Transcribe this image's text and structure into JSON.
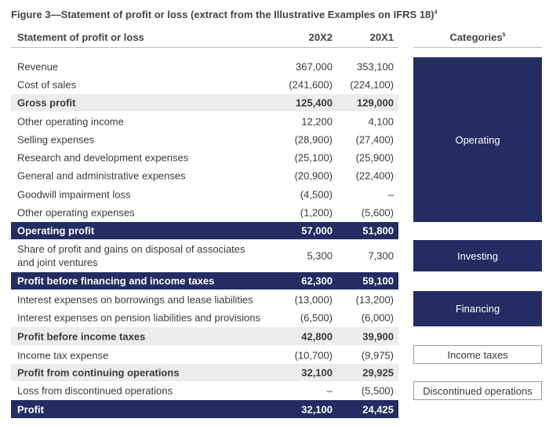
{
  "title": "Figure 3—Statement of profit or loss (extract from the Illustrative Examples on IFRS 18)",
  "title_footnote": "4",
  "header": {
    "label": "Statement of profit or loss",
    "col1": "20X2",
    "col2": "20X1",
    "categories": "Categories",
    "categories_footnote": "5"
  },
  "rows": [
    {
      "label": "Revenue",
      "v2": "367,000",
      "v1": "353,100"
    },
    {
      "label": "Cost of sales",
      "v2": "(241,600)",
      "v1": "(224,100)"
    },
    {
      "label": "Gross profit",
      "v2": "125,400",
      "v1": "129,000"
    },
    {
      "label": "Other operating income",
      "v2": "12,200",
      "v1": "4,100"
    },
    {
      "label": "Selling expenses",
      "v2": "(28,900)",
      "v1": "(27,400)"
    },
    {
      "label": "Research and development expenses",
      "v2": "(25,100)",
      "v1": "(25,900)"
    },
    {
      "label": "General and administrative expenses",
      "v2": "(20,900)",
      "v1": "(22,400)"
    },
    {
      "label": "Goodwill impairment loss",
      "v2": "(4,500)",
      "v1": "–"
    },
    {
      "label": "Other operating expenses",
      "v2": "(1,200)",
      "v1": "(5,600)"
    },
    {
      "label": "Operating profit",
      "v2": "57,000",
      "v1": "51,800"
    },
    {
      "label": "Share of profit and gains on disposal of associates and joint ventures",
      "v2": "5,300",
      "v1": "7,300"
    },
    {
      "label": "Profit before financing and income taxes",
      "v2": "62,300",
      "v1": "59,100"
    },
    {
      "label": "Interest expenses on borrowings and lease liabilities",
      "v2": "(13,000)",
      "v1": "(13,200)"
    },
    {
      "label": "Interest expenses on pension liabilities and provisions",
      "v2": "(6,500)",
      "v1": "(6,000)"
    },
    {
      "label": "Profit before income taxes",
      "v2": "42,800",
      "v1": "39,900"
    },
    {
      "label": "Income tax expense",
      "v2": "(10,700)",
      "v1": "(9,975)"
    },
    {
      "label": "Profit from continuing operations",
      "v2": "32,100",
      "v1": "29,925"
    },
    {
      "label": "Loss from discontinued operations",
      "v2": "–",
      "v1": "(5,500)"
    },
    {
      "label": "Profit",
      "v2": "32,100",
      "v1": "24,425"
    }
  ],
  "categories": [
    {
      "label": "Operating"
    },
    {
      "label": "Investing"
    },
    {
      "label": "Financing"
    },
    {
      "label": "Income taxes"
    },
    {
      "label": "Discontinued operations"
    }
  ],
  "colors": {
    "navy": "#232d63",
    "shade": "#ececec"
  }
}
